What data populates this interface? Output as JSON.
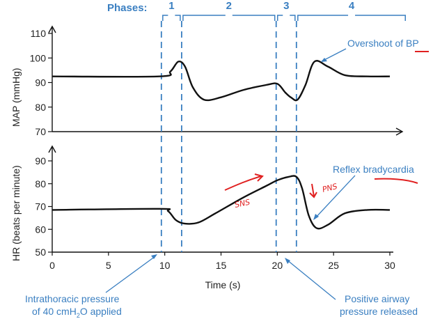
{
  "chart_data": {
    "type": "line",
    "xlabel": "Time (s)",
    "xlim": [
      0,
      31
    ],
    "x_ticks": [
      0,
      5,
      10,
      15,
      20,
      25,
      30
    ],
    "phases": {
      "label": "Phases:",
      "items": [
        {
          "name": "1",
          "start": 9.7,
          "end": 11.5
        },
        {
          "name": "2",
          "start": 11.5,
          "end": 19.9
        },
        {
          "name": "3",
          "start": 19.9,
          "end": 21.7
        },
        {
          "name": "4",
          "start": 21.7,
          "end": 31.5
        }
      ]
    },
    "panels": [
      {
        "id": "map",
        "ylabel": "MAP (mmHg)",
        "ylim": [
          70,
          112
        ],
        "y_ticks": [
          70,
          80,
          90,
          100,
          110
        ],
        "series": [
          {
            "name": "MAP",
            "x": [
              0,
              9.5,
              10.5,
              11.2,
              11.8,
              12.5,
              13.5,
              15,
              17,
              19,
              20,
              20.7,
              21.2,
              21.8,
              22.5,
              23.3,
              24.5,
              26,
              28,
              30
            ],
            "y": [
              92.5,
              92.5,
              94.5,
              98.5,
              96.5,
              88,
              83,
              84,
              87,
              89,
              89.5,
              86,
              84,
              83,
              89,
              98.5,
              96.5,
              93,
              92.5,
              92.5
            ]
          }
        ]
      },
      {
        "id": "hr",
        "ylabel": "HR (beats per minute)",
        "ylim": [
          50,
          95
        ],
        "y_ticks": [
          50,
          60,
          70,
          80,
          90
        ],
        "series": [
          {
            "name": "HR",
            "x": [
              0,
              9.5,
              10.3,
              11,
              11.8,
              13,
              14.5,
              17,
              19,
              20,
              21,
              21.7,
              22.2,
              22.8,
              23.5,
              24.5,
              26,
              28,
              30
            ],
            "y": [
              68.5,
              69,
              68,
              64,
              62.5,
              63,
              67,
              74,
              79,
              81.5,
              83,
              83,
              78,
              66,
              60.5,
              62,
              67,
              68.5,
              68.5
            ]
          }
        ]
      }
    ],
    "annotations": {
      "overshoot": "Overshoot of BP",
      "bradycardia": "Reflex bradycardia",
      "intrathoracic_line1": "Intrathoracic pressure",
      "intrathoracic_line2": "of 40 cmH",
      "intrathoracic_sub": "2",
      "intrathoracic_tail": "O applied",
      "release_line1": "Positive airway",
      "release_line2": "pressure released"
    },
    "handwritten": {
      "sns": "SNS",
      "pns": "PNS"
    }
  },
  "colors": {
    "accent": "#3a7fc1",
    "line": "#111111",
    "handwriting": "#e02020"
  }
}
